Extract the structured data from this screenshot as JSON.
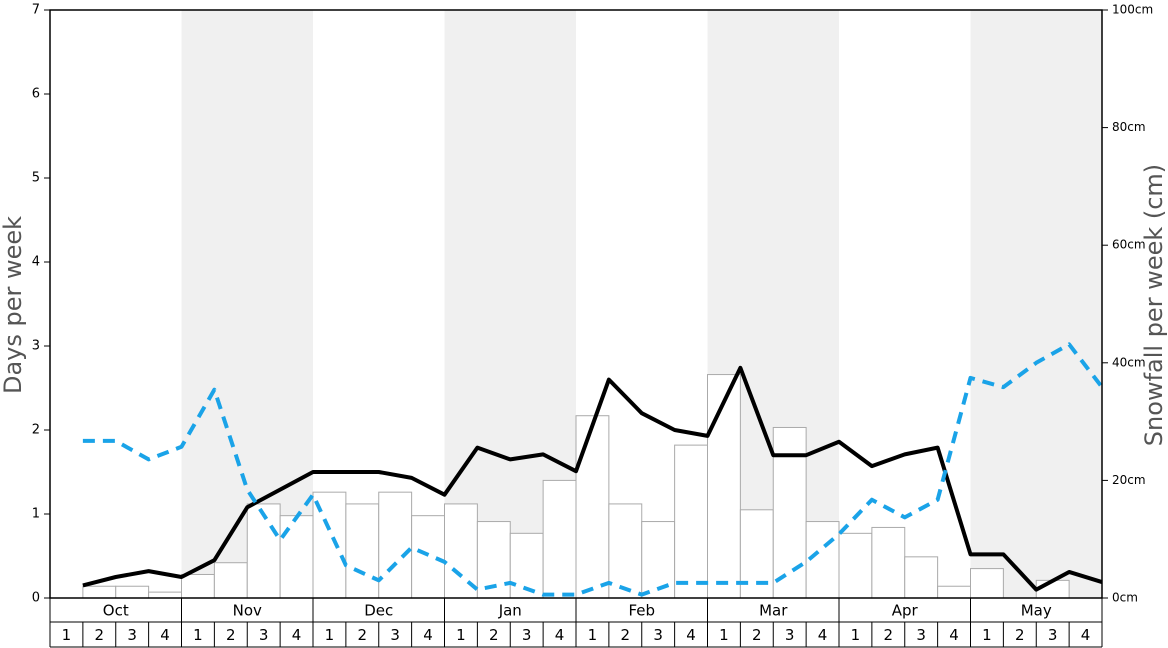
{
  "chart_data": {
    "type": "combo",
    "y_label": "Days per week",
    "y2_label": "Snowfall per week (cm)",
    "months": [
      "Oct",
      "Nov",
      "Dec",
      "Jan",
      "Feb",
      "Mar",
      "Apr",
      "May"
    ],
    "categories": [
      "1",
      "2",
      "3",
      "4",
      "1",
      "2",
      "3",
      "4",
      "1",
      "2",
      "3",
      "4",
      "1",
      "2",
      "3",
      "4",
      "1",
      "2",
      "3",
      "4",
      "1",
      "2",
      "3",
      "4",
      "1",
      "2",
      "3",
      "4",
      "1",
      "2",
      "3",
      "4"
    ],
    "ylim": [
      0,
      7
    ],
    "yticks": [
      0,
      1,
      2,
      3,
      4,
      5,
      6,
      7
    ],
    "y2lim": [
      0,
      100
    ],
    "y2ticks": [
      {
        "value": 0,
        "label": "0cm"
      },
      {
        "value": 20,
        "label": "20cm"
      },
      {
        "value": 40,
        "label": "40cm"
      },
      {
        "value": 60,
        "label": "60cm"
      },
      {
        "value": 80,
        "label": "80cm"
      },
      {
        "value": 100,
        "label": "100cm"
      }
    ],
    "band_color": "#f0f0f0",
    "series": [
      {
        "kind": "bar",
        "axis": "y2",
        "color": "#ffffff",
        "stroke": "#aaaaaa",
        "values": [
          0,
          2,
          2,
          1,
          4,
          6,
          16,
          14,
          18,
          16,
          18,
          14,
          16,
          13,
          11,
          20,
          31,
          16,
          13,
          26,
          38,
          15,
          29,
          13,
          11,
          12,
          7,
          2,
          5,
          0,
          3,
          0
        ]
      },
      {
        "kind": "line",
        "axis": "y",
        "color": "#000000",
        "dashed": false,
        "values": [
          0.15,
          0.25,
          0.32,
          0.25,
          0.45,
          1.08,
          1.29,
          1.5,
          1.5,
          1.5,
          1.43,
          1.23,
          1.79,
          1.65,
          1.71,
          1.51,
          2.6,
          2.2,
          2.0,
          1.93,
          2.74,
          1.7,
          1.7,
          1.86,
          1.57,
          1.71,
          1.79,
          0.52,
          0.52,
          0.1,
          0.31,
          0.19
        ]
      },
      {
        "kind": "line",
        "axis": "y",
        "color": "#1aa3e8",
        "dashed": true,
        "values": [
          1.87,
          1.87,
          1.65,
          1.8,
          2.48,
          1.29,
          0.69,
          1.23,
          0.39,
          0.21,
          0.6,
          0.43,
          0.1,
          0.18,
          0.04,
          0.04,
          0.18,
          0.04,
          0.18,
          0.18,
          0.18,
          0.18,
          0.43,
          0.76,
          1.17,
          0.96,
          1.17,
          2.62,
          2.51,
          2.8,
          3.02,
          2.51
        ]
      }
    ]
  }
}
